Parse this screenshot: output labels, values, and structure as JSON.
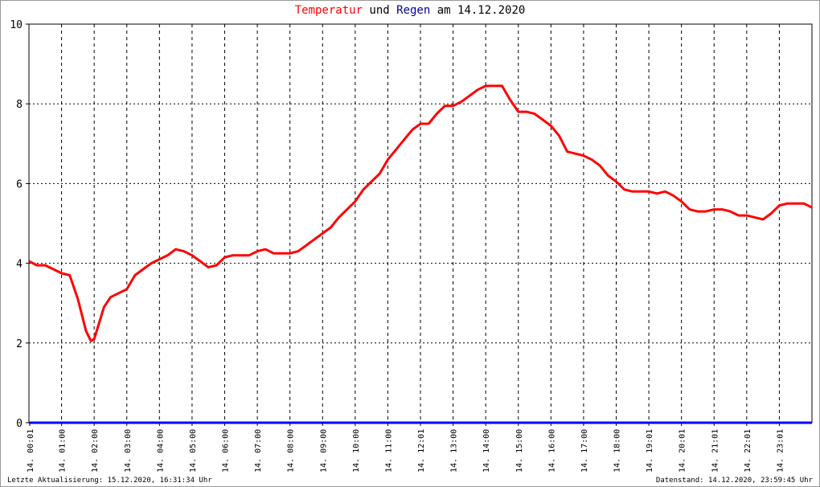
{
  "title": {
    "part1": "Temperatur",
    "part2": " und ",
    "part3": "Regen",
    "part4": " am 14.12.2020"
  },
  "footer": {
    "left": "Letzte Aktualisierung: 15.12.2020, 16:31:34 Uhr",
    "right": "Datenstand: 14.12.2020, 23:59:45 Uhr"
  },
  "colors": {
    "temperature": "#ff0000",
    "rain": "#0000ff",
    "title_temp": "#ff0000",
    "title_rain": "#000099"
  },
  "chart_data": {
    "type": "line",
    "title": "Temperatur und Regen am 14.12.2020",
    "ylim": [
      0,
      10
    ],
    "yticks": [
      "0",
      "2",
      "4",
      "6",
      "8",
      "10"
    ],
    "xlim_hours": [
      0,
      24
    ],
    "xtick_labels": [
      "14. 00:01",
      "14. 01:00",
      "14. 02:00",
      "14. 03:00",
      "14. 04:00",
      "14. 05:00",
      "14. 06:00",
      "14. 07:00",
      "14. 08:00",
      "14. 09:00",
      "14. 10:00",
      "14. 11:00",
      "14. 12:01",
      "14. 13:00",
      "14. 14:00",
      "14. 15:00",
      "14. 16:00",
      "14. 17:00",
      "14. 18:00",
      "14. 19:01",
      "14. 20:01",
      "14. 21:01",
      "14. 22:01",
      "14. 23:01"
    ],
    "grid": true,
    "series": [
      {
        "name": "Temperatur",
        "x_hours": [
          0,
          0.25,
          0.5,
          0.75,
          1,
          1.25,
          1.5,
          1.75,
          1.9,
          2,
          2.15,
          2.3,
          2.5,
          2.75,
          3,
          3.25,
          3.5,
          3.75,
          4,
          4.25,
          4.5,
          4.75,
          5,
          5.25,
          5.5,
          5.75,
          6,
          6.25,
          6.5,
          6.75,
          7,
          7.25,
          7.5,
          7.75,
          8,
          8.25,
          8.5,
          8.75,
          9,
          9.25,
          9.5,
          9.75,
          10,
          10.25,
          10.5,
          10.75,
          11,
          11.25,
          11.5,
          11.75,
          12,
          12.25,
          12.5,
          12.75,
          13,
          13.25,
          13.5,
          13.75,
          14,
          14.25,
          14.5,
          14.75,
          15,
          15.25,
          15.5,
          15.75,
          16,
          16.25,
          16.5,
          16.75,
          17,
          17.25,
          17.5,
          17.75,
          18,
          18.25,
          18.5,
          18.75,
          19,
          19.25,
          19.5,
          19.75,
          20,
          20.25,
          20.5,
          20.75,
          21,
          21.25,
          21.5,
          21.75,
          22,
          22.25,
          22.5,
          22.75,
          23,
          23.25,
          23.5,
          23.75,
          24
        ],
        "values": [
          4.05,
          3.95,
          3.95,
          3.85,
          3.75,
          3.7,
          3.1,
          2.3,
          2.05,
          2.1,
          2.5,
          2.9,
          3.15,
          3.25,
          3.35,
          3.7,
          3.85,
          4.0,
          4.1,
          4.2,
          4.35,
          4.3,
          4.2,
          4.05,
          3.9,
          3.95,
          4.15,
          4.2,
          4.2,
          4.2,
          4.3,
          4.35,
          4.25,
          4.25,
          4.25,
          4.3,
          4.45,
          4.6,
          4.75,
          4.9,
          5.15,
          5.35,
          5.55,
          5.85,
          6.05,
          6.25,
          6.6,
          6.85,
          7.1,
          7.35,
          7.5,
          7.5,
          7.75,
          7.95,
          7.95,
          8.05,
          8.2,
          8.35,
          8.45,
          8.45,
          8.45,
          8.1,
          7.8,
          7.8,
          7.75,
          7.6,
          7.45,
          7.2,
          6.8,
          6.75,
          6.7,
          6.6,
          6.45,
          6.2,
          6.05,
          5.85,
          5.8,
          5.8,
          5.8,
          5.75,
          5.8,
          5.7,
          5.55,
          5.35,
          5.3,
          5.3,
          5.35,
          5.35,
          5.3,
          5.2,
          5.2,
          5.15,
          5.1,
          5.25,
          5.45,
          5.5,
          5.5,
          5.5,
          5.4
        ]
      },
      {
        "name": "Regen",
        "x_hours": [
          0,
          24
        ],
        "values": [
          0,
          0
        ]
      }
    ]
  }
}
